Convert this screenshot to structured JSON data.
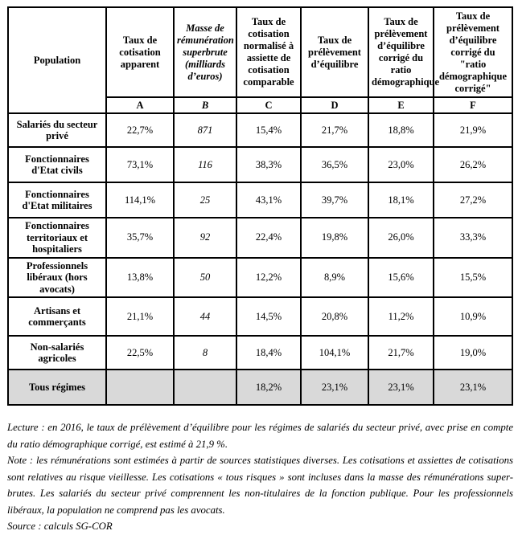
{
  "colors": {
    "grid": "#000000",
    "highlight_row_bg": "#d9d9d9",
    "text": "#000000",
    "page_bg": "#ffffff"
  },
  "table": {
    "header": {
      "population_label": "Population",
      "columns": [
        {
          "letter": "A",
          "title": "Taux de cotisation apparent"
        },
        {
          "letter": "B",
          "title": "Masse de rémunération superbrute (milliards d’euros)"
        },
        {
          "letter": "C",
          "title": "Taux de cotisation normalisé à assiette de cotisation comparable"
        },
        {
          "letter": "D",
          "title": "Taux de prélèvement d’équilibre"
        },
        {
          "letter": "E",
          "title": "Taux de prélèvement d’équilibre corrigé du ratio démographique"
        },
        {
          "letter": "F",
          "title": "Taux de prélèvement d’équilibre corrigé du \"ratio démographique corrigé\""
        }
      ]
    },
    "rows": [
      {
        "population": "Salariés du secteur privé",
        "values": [
          "22,7%",
          "871",
          "15,4%",
          "21,7%",
          "18,8%",
          "21,9%"
        ]
      },
      {
        "population": "Fonctionnaires d'Etat civils",
        "values": [
          "73,1%",
          "116",
          "38,3%",
          "36,5%",
          "23,0%",
          "26,2%"
        ]
      },
      {
        "population": "Fonctionnaires d'Etat militaires",
        "values": [
          "114,1%",
          "25",
          "43,1%",
          "39,7%",
          "18,1%",
          "27,2%"
        ]
      },
      {
        "population": "Fonctionnaires territoriaux et hospitaliers",
        "values": [
          "35,7%",
          "92",
          "22,4%",
          "19,8%",
          "26,0%",
          "33,3%"
        ]
      },
      {
        "population": "Professionnels libéraux (hors avocats)",
        "values": [
          "13,8%",
          "50",
          "12,2%",
          "8,9%",
          "15,6%",
          "15,5%"
        ]
      },
      {
        "population": "Artisans et commerçants",
        "values": [
          "21,1%",
          "44",
          "14,5%",
          "20,8%",
          "11,2%",
          "10,9%"
        ]
      },
      {
        "population": "Non-salariés agricoles",
        "values": [
          "22,5%",
          "8",
          "18,4%",
          "104,1%",
          "21,7%",
          "19,0%"
        ]
      },
      {
        "population": "Tous régimes",
        "values": [
          "",
          "",
          "18,2%",
          "23,1%",
          "23,1%",
          "23,1%"
        ],
        "highlight": true
      }
    ]
  },
  "notes": {
    "lecture": "Lecture : en 2016, le taux de prélèvement d’équilibre pour les régimes de salariés du secteur privé, avec prise en compte du ratio démographique corrigé, est estimé à 21,9 %.",
    "note": "Note : les rémunérations sont estimées à partir de sources statistiques diverses. Les cotisations et assiettes de cotisations sont relatives au risque vieillesse. Les cotisations « tous risques » sont incluses dans la masse des rémunérations super-brutes. Les salariés du secteur privé comprennent les non-titulaires de la fonction publique. Pour les professionnels libéraux, la population ne comprend pas les avocats.",
    "source": "Source : calculs SG-COR"
  }
}
